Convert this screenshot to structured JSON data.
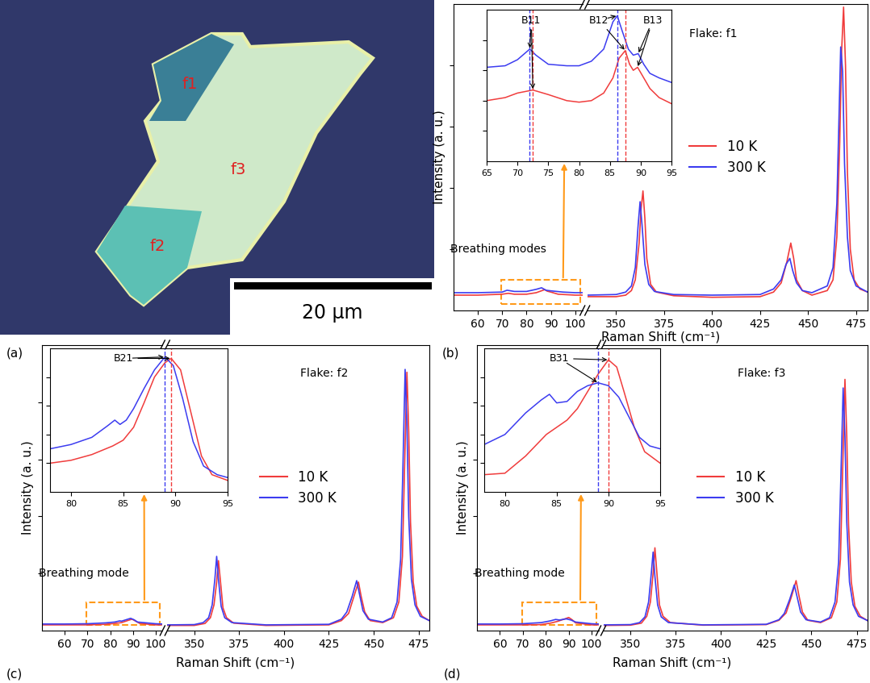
{
  "image_panel": {
    "panel_label": "(a)",
    "labels": [
      "f1",
      "f2",
      "f3"
    ],
    "scale_bar": "20 µm"
  },
  "chart_data": [
    {
      "type": "line",
      "panel_label": "(b)",
      "xlabel": "Raman Shift (cm⁻¹)",
      "ylabel": "Intensity (a. u.)",
      "ylim": [
        0,
        100
      ],
      "yticks": [
        20,
        40,
        60,
        80
      ],
      "tick_labels": "x",
      "legend": "center",
      "annotation": "Flake: f1",
      "highlight_label": "Breathing modes",
      "x_segments": [
        {
          "xlim": [
            50,
            103
          ],
          "xticks": [
            60,
            70,
            80,
            90,
            100
          ]
        },
        {
          "xlim": [
            335,
            481
          ],
          "xticks": [
            350,
            375,
            400,
            425,
            450,
            475
          ]
        }
      ],
      "series": [
        {
          "name": "10 K",
          "color": "#f03c3c",
          "x": [
            50,
            60,
            70,
            72.5,
            75,
            80,
            84,
            87.5,
            88.5,
            90,
            93,
            100,
            103,
            335,
            350,
            355,
            358,
            360,
            362,
            363,
            364,
            365,
            366,
            368,
            371,
            380,
            400,
            425,
            432,
            436,
            439,
            441,
            442.5,
            444,
            447,
            452,
            460,
            463,
            465,
            466.5,
            467.5,
            468.5,
            469.5,
            470.5,
            472,
            474,
            477,
            481
          ],
          "values": [
            5,
            5,
            5.3,
            5.6,
            5.3,
            5.3,
            5.8,
            6.8,
            6.3,
            6.0,
            5.3,
            5,
            5,
            4.5,
            4.5,
            5,
            6.5,
            10,
            22,
            33,
            39,
            30,
            17,
            8.5,
            6,
            4.8,
            4.3,
            4.5,
            6,
            9,
            16,
            22,
            17,
            10,
            6.5,
            5,
            6.5,
            10,
            24,
            55,
            85,
            99,
            80,
            45,
            20,
            10,
            7,
            6
          ]
        },
        {
          "name": "300 K",
          "color": "#3c3cf0",
          "x": [
            50,
            60,
            70,
            72,
            75,
            80,
            84,
            86.2,
            88,
            90,
            95,
            100,
            103,
            335,
            350,
            355,
            358,
            360,
            361.5,
            362.5,
            363.5,
            365,
            367,
            370,
            380,
            400,
            425,
            432,
            436,
            438.5,
            440.5,
            442,
            444,
            447,
            452,
            460,
            463,
            465,
            466,
            467,
            468,
            469,
            470.5,
            472,
            475,
            481
          ],
          "values": [
            5.8,
            5.8,
            6,
            6.6,
            6.2,
            6.2,
            6.9,
            7.4,
            6.6,
            6.4,
            6,
            5.8,
            5.8,
            5,
            5.2,
            6,
            8,
            14,
            28,
            35.5,
            28,
            15,
            8.5,
            6.2,
            5.2,
            5,
            5.2,
            7,
            10,
            15,
            17,
            13,
            9,
            6.5,
            5.8,
            8,
            14,
            35,
            60,
            86,
            78,
            48,
            24,
            13,
            8,
            6
          ]
        }
      ],
      "inset": {
        "xlim": [
          65,
          95
        ],
        "xticks": [
          65,
          70,
          75,
          80,
          85,
          90,
          95
        ],
        "ylim": [
          0,
          100
        ],
        "yticks": [
          20,
          40,
          60,
          80
        ],
        "tick_labels": "x",
        "series": [
          {
            "name": "10 K",
            "color": "#f03c3c",
            "x": [
              65,
              68,
              70,
              72.5,
              75,
              78,
              80,
              82,
              84,
              85.5,
              86.5,
              87.5,
              88.2,
              88.8,
              89.5,
              90.5,
              91.5,
              93,
              95
            ],
            "values": [
              40,
              42,
              45,
              47,
              44,
              40,
              39,
              40,
              45,
              55,
              68,
              73,
              64,
              60,
              62,
              55,
              48,
              42,
              38
            ]
          },
          {
            "name": "300 K",
            "color": "#3c3cf0",
            "x": [
              65,
              68,
              70,
              72,
              73,
              75,
              78,
              80,
              82,
              84,
              85.5,
              86.2,
              87,
              88,
              88.8,
              89.6,
              90.5,
              91.5,
              93,
              95
            ],
            "values": [
              62,
              63,
              67,
              74,
              70,
              64,
              63,
              63,
              66,
              74,
              92,
              96,
              86,
              74,
              70,
              71,
              64,
              58,
              55,
              52
            ]
          }
        ],
        "peaks": [
          {
            "label": "B11",
            "x": [
              72.5,
              72.0
            ],
            "line_style": "dashed"
          },
          {
            "label": "B12",
            "x": [
              87.5,
              86.2
            ],
            "line_style": "dashed"
          },
          {
            "label": "B13",
            "x": [
              89.5,
              89.6
            ],
            "line_style": "none"
          }
        ]
      }
    },
    {
      "type": "line",
      "panel_label": "(c)",
      "xlabel": "Raman Shift (cm⁻¹)",
      "ylabel": "Intensity (a. u.)",
      "ylim": [
        0,
        100
      ],
      "yticks": [
        20,
        40,
        60,
        80
      ],
      "tick_labels": "x",
      "legend": "center",
      "annotation": "Flake: f2",
      "highlight_label": "Breathing mode",
      "x_segments": [
        {
          "xlim": [
            50,
            103
          ],
          "xticks": [
            60,
            70,
            80,
            90,
            100
          ]
        },
        {
          "xlim": [
            335,
            481
          ],
          "xticks": [
            350,
            375,
            400,
            425,
            450,
            475
          ]
        }
      ],
      "series": [
        {
          "name": "10 K",
          "color": "#f03c3c",
          "x": [
            50,
            60,
            70,
            78,
            82,
            85,
            88,
            89.6,
            91,
            93,
            100,
            103,
            335,
            350,
            356,
            359,
            361,
            362.5,
            363.5,
            364.5,
            366,
            368,
            372,
            390,
            425,
            432,
            436,
            439,
            441.5,
            443,
            445,
            448,
            455,
            461,
            464,
            466,
            467.3,
            468.5,
            469.5,
            470.5,
            472,
            474,
            477,
            481
          ],
          "values": [
            2,
            2,
            2,
            2.2,
            2.5,
            2.8,
            3.6,
            4.0,
            3.4,
            2.5,
            2,
            2,
            1.8,
            1.8,
            2.5,
            4.5,
            9,
            17,
            24.5,
            18,
            8,
            4.5,
            2.6,
            1.8,
            2,
            3.5,
            6,
            12,
            17,
            12,
            6.5,
            3.5,
            2.8,
            4.5,
            10,
            26,
            60,
            90.5,
            70,
            38,
            17,
            8.5,
            5,
            3.5
          ]
        },
        {
          "name": "300 K",
          "color": "#3c3cf0",
          "x": [
            50,
            60,
            70,
            78,
            82,
            84.2,
            85,
            87,
            89,
            90.5,
            92,
            100,
            103,
            335,
            350,
            355,
            358,
            360,
            361.5,
            362.5,
            363.5,
            365,
            367,
            371,
            390,
            425,
            432,
            435,
            438,
            440.5,
            442,
            444,
            447,
            455,
            460,
            463,
            465,
            466.3,
            467.5,
            468.5,
            469.5,
            471,
            473,
            476,
            481
          ],
          "values": [
            2.3,
            2.3,
            2.4,
            2.7,
            3.0,
            3.4,
            3.3,
            3.8,
            4.3,
            3.8,
            3.0,
            2.4,
            2.3,
            2,
            2.1,
            2.8,
            4.5,
            9,
            18,
            26,
            18,
            8.5,
            4.5,
            2.8,
            2,
            2.2,
            4,
            6.5,
            12,
            17.5,
            13,
            7,
            4,
            3,
            4.5,
            10,
            25,
            58,
            91.5,
            72,
            40,
            18,
            9,
            5,
            3.5
          ]
        }
      ],
      "inset": {
        "xlim": [
          78,
          95
        ],
        "xticks": [
          80,
          85,
          90,
          95
        ],
        "ylim": [
          0,
          100
        ],
        "yticks": [
          20,
          40,
          60,
          80
        ],
        "tick_labels": "x",
        "series": [
          {
            "name": "10 K",
            "color": "#f03c3c",
            "x": [
              78,
              80,
              82,
              84,
              85,
              86,
              87,
              88,
              89,
              89.6,
              90.5,
              91.5,
              92.5,
              93.5,
              95
            ],
            "values": [
              20,
              22,
              26,
              32,
              36,
              45,
              62,
              80,
              90,
              93,
              85,
              55,
              25,
              12,
              8
            ]
          },
          {
            "name": "300 K",
            "color": "#3c3cf0",
            "x": [
              78,
              80,
              82,
              83.5,
              84.2,
              84.7,
              85.3,
              86,
              87,
              88,
              89,
              89.8,
              90.7,
              91.7,
              92.7,
              94,
              95
            ],
            "values": [
              30,
              33,
              38,
              46,
              50,
              47,
              50,
              58,
              72,
              85,
              94,
              88,
              65,
              35,
              18,
              12,
              10
            ]
          }
        ],
        "peaks": [
          {
            "label": "B21",
            "x": [
              89.6,
              89.0
            ],
            "line_style": "dashed"
          }
        ]
      }
    },
    {
      "type": "line",
      "panel_label": "(d)",
      "xlabel": "Raman Shift (cm⁻¹)",
      "ylabel": "Intensity (a. u.)",
      "ylim": [
        0,
        100
      ],
      "yticks": [
        20,
        40,
        60,
        80
      ],
      "tick_labels": "x",
      "legend": "center",
      "annotation": "Flake: f3",
      "highlight_label": "Breathing mode",
      "x_segments": [
        {
          "xlim": [
            50,
            103
          ],
          "xticks": [
            60,
            70,
            80,
            90,
            100
          ]
        },
        {
          "xlim": [
            335,
            481
          ],
          "xticks": [
            350,
            375,
            400,
            425,
            450,
            475
          ]
        }
      ],
      "series": [
        {
          "name": "10 K",
          "color": "#f03c3c",
          "x": [
            50,
            60,
            70,
            78,
            82,
            85,
            88,
            90,
            91.5,
            93,
            100,
            103,
            335,
            350,
            356,
            359,
            361,
            362.5,
            363.5,
            364.5,
            366,
            368,
            372,
            390,
            425,
            432,
            436,
            439,
            441.5,
            443,
            445,
            448,
            455,
            461,
            464,
            466,
            467.3,
            468.5,
            469.5,
            470.5,
            472,
            474,
            477,
            481
          ],
          "values": [
            2,
            2,
            2,
            2.1,
            2.6,
            3.2,
            4.0,
            4.6,
            3.8,
            2.7,
            2,
            2,
            1.8,
            1.9,
            2.6,
            5,
            10,
            20,
            29,
            21,
            9,
            5,
            2.8,
            1.9,
            2.1,
            3.6,
            6.2,
            12,
            17.5,
            12.5,
            6.5,
            3.6,
            2.8,
            4.5,
            10,
            25,
            58,
            88,
            68,
            37,
            17,
            8.5,
            5,
            3.5
          ]
        },
        {
          "name": "300 K",
          "color": "#3c3cf0",
          "x": [
            50,
            60,
            70,
            78,
            82,
            84.3,
            86,
            88,
            89,
            91,
            93,
            100,
            103,
            335,
            350,
            355,
            358,
            360,
            361.5,
            362.5,
            363.5,
            365,
            367,
            371,
            390,
            425,
            432,
            435,
            438,
            440.5,
            442,
            444,
            447,
            455,
            460,
            463,
            465,
            466.3,
            467.5,
            468.5,
            469.5,
            471,
            473,
            476,
            481
          ],
          "values": [
            2.3,
            2.3,
            2.4,
            2.8,
            3.4,
            3.9,
            3.7,
            4.0,
            4.1,
            3.7,
            3.0,
            2.4,
            2.3,
            2,
            2.1,
            2.8,
            4.8,
            10,
            20,
            27.5,
            19,
            9,
            4.8,
            2.8,
            2,
            2.2,
            3.8,
            6,
            11,
            16,
            12,
            6.5,
            3.8,
            3,
            4.5,
            10,
            24,
            55,
            85,
            68,
            38,
            17,
            9,
            5,
            3.5
          ]
        }
      ],
      "inset": {
        "xlim": [
          78,
          95
        ],
        "xticks": [
          80,
          85,
          90,
          95
        ],
        "ylim": [
          0,
          100
        ],
        "yticks": [
          20,
          40,
          60,
          80
        ],
        "tick_labels": "x",
        "series": [
          {
            "name": "10 K",
            "color": "#f03c3c",
            "x": [
              78,
              80,
              82,
              84,
              85,
              86,
              87,
              88,
              89,
              90,
              90.8,
              91.5,
              92.5,
              93.5,
              95
            ],
            "values": [
              12,
              13,
              25,
              40,
              45,
              50,
              58,
              70,
              82,
              92,
              87,
              70,
              45,
              28,
              20
            ]
          },
          {
            "name": "300 K",
            "color": "#3c3cf0",
            "x": [
              78,
              80,
              82,
              83.5,
              84.3,
              85,
              86,
              87,
              88,
              89,
              90,
              91,
              92,
              93,
              94,
              95
            ],
            "values": [
              33,
              40,
              55,
              64,
              68,
              62,
              63,
              70,
              74,
              76,
              74,
              66,
              52,
              38,
              32,
              30
            ]
          }
        ],
        "peaks": [
          {
            "label": "B31",
            "x": [
              90.0,
              89.0
            ],
            "line_style": "dashed"
          }
        ]
      }
    }
  ]
}
